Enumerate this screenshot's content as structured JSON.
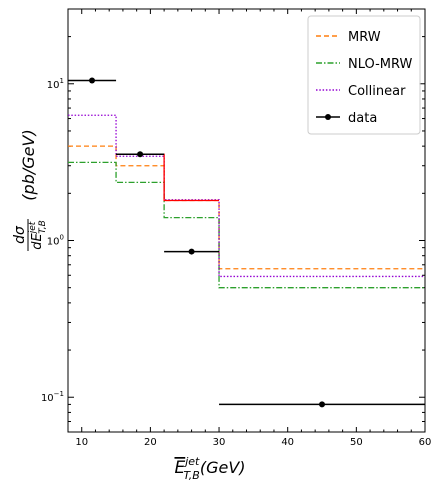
{
  "chart_data": {
    "type": "line",
    "xlabel_main": "E",
    "xlabel_sup": "jet",
    "xlabel_sub": "T,B",
    "xlabel_unit": "(GeV)",
    "ylabel_num": "dσ",
    "ylabel_den_main": "dE",
    "ylabel_den_sup": "jet",
    "ylabel_den_sub": "T,B",
    "ylabel_unit": "(pb/GeV)",
    "xlim": [
      8,
      60
    ],
    "ylim": [
      0.06,
      30
    ],
    "yscale": "log",
    "x_ticks": [
      10,
      20,
      30,
      40,
      50,
      60
    ],
    "x_tick_labels": [
      "10",
      "20",
      "30",
      "40",
      "50",
      "60"
    ],
    "y_major_ticks": [
      0.1,
      1,
      10
    ],
    "y_tick_labels": [
      {
        "base": "10",
        "exp": "−1"
      },
      {
        "base": "10",
        "exp": "0"
      },
      {
        "base": "10",
        "exp": "1"
      }
    ],
    "grid": false,
    "legend": "top-right",
    "bin_edges": [
      8,
      15,
      22,
      30,
      60
    ],
    "series": [
      {
        "name": "MRW",
        "style": "dashed",
        "color": "#ff7f0e",
        "values": [
          4.0,
          3.0,
          1.8,
          0.66
        ]
      },
      {
        "name": "NLO-MRW",
        "style": "dashdot",
        "color": "#2ca02c",
        "values": [
          3.15,
          2.35,
          1.4,
          0.5
        ]
      },
      {
        "name": "Collinear",
        "style": "dotted",
        "color": "#9400d3",
        "values": [
          6.3,
          3.45,
          1.82,
          0.59
        ]
      },
      {
        "name": "",
        "style": "solid",
        "color": "#ff0000",
        "values": [
          null,
          3.55,
          1.8,
          null
        ]
      }
    ],
    "data_points": {
      "name": "data",
      "color": "#000000",
      "points": [
        {
          "x": 11.5,
          "y": 10.5,
          "xerr": [
            8,
            15
          ]
        },
        {
          "x": 18.5,
          "y": 3.55,
          "xerr": [
            15,
            22
          ]
        },
        {
          "x": 26.0,
          "y": 0.85,
          "xerr": [
            22,
            30
          ]
        },
        {
          "x": 45.0,
          "y": 0.09,
          "xerr": [
            30,
            60
          ]
        }
      ]
    }
  }
}
